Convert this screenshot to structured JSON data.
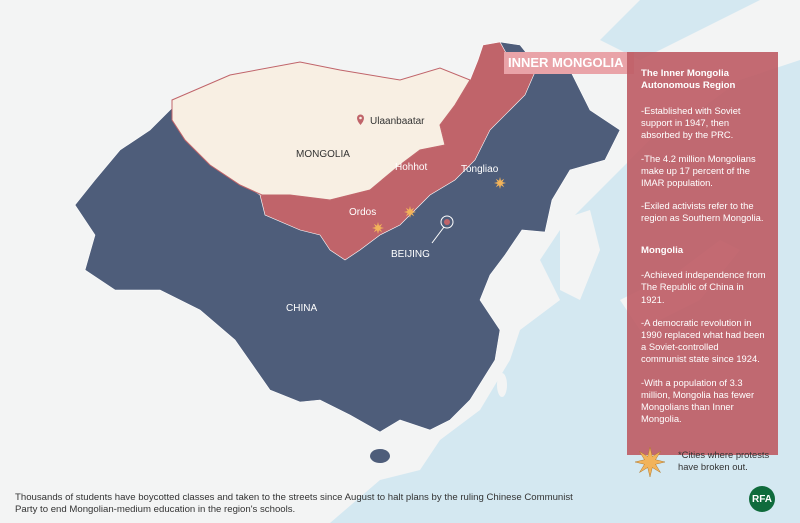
{
  "colors": {
    "sea": "#d4e8f1",
    "land": "#f3f4f4",
    "china": "#4e5d7a",
    "inner_mongolia": "#c0646a",
    "mongolia": "#f8efe3",
    "panel": "#be5f67",
    "protest_star": "#f2b35a",
    "rfa_logo": "#0f6b3c"
  },
  "map": {
    "callout": "INNER MONGOLIA",
    "labels": {
      "mongolia": "MONGOLIA",
      "ulaanbaatar": "Ulaanbaatar",
      "hohhot": "Hohhot",
      "tongliao": "Tongliao",
      "ordos": "Ordos",
      "beijing": "BEIJING",
      "china": "CHINA"
    },
    "protest_cities": [
      "Hohhot",
      "Ordos",
      "Tongliao"
    ]
  },
  "panel": {
    "imar_title": "The Inner Mongolia Autonomous Region",
    "imar_points": [
      "-Established with Soviet support in 1947, then absorbed by the PRC.",
      "-The 4.2 million Mongolians make up 17 percent of the IMAR population.",
      "-Exiled activists refer to the region as Southern Mongolia."
    ],
    "mongolia_title": "Mongolia",
    "mongolia_points": [
      "-Achieved independence from The Republic of China in 1921.",
      "-A democratic revolution in 1990 replaced what had been a Soviet-controlled communist state since 1924.",
      "-With a population of 3.3 million, Mongolia has fewer Mongolians than Inner Mongolia."
    ]
  },
  "legend": {
    "text": "*Cities where protests have broken out.",
    "icon": "star-icon"
  },
  "caption": "Thousands of students have boycotted classes and taken to the streets since August to halt plans by the ruling Chinese Communist Party to end Mongolian-medium education in the region's schools.",
  "logo": "RFA"
}
